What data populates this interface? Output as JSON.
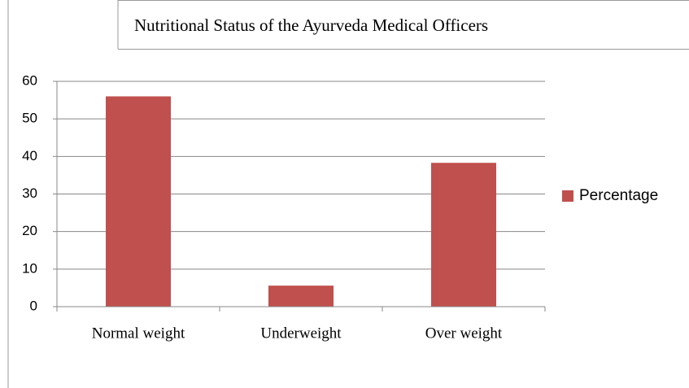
{
  "chart_data": {
    "type": "bar",
    "title": "Nutritional Status of the Ayurveda Medical Officers",
    "categories": [
      "Normal weight",
      "Underweight",
      "Over weight"
    ],
    "series": [
      {
        "name": "Percentage",
        "color": "#c0504d",
        "values": [
          56,
          5.6,
          38.3
        ]
      }
    ],
    "ylim": [
      0,
      60
    ],
    "yticks": [
      0,
      10,
      20,
      30,
      40,
      50,
      60
    ],
    "grid": true,
    "legend": "right"
  }
}
